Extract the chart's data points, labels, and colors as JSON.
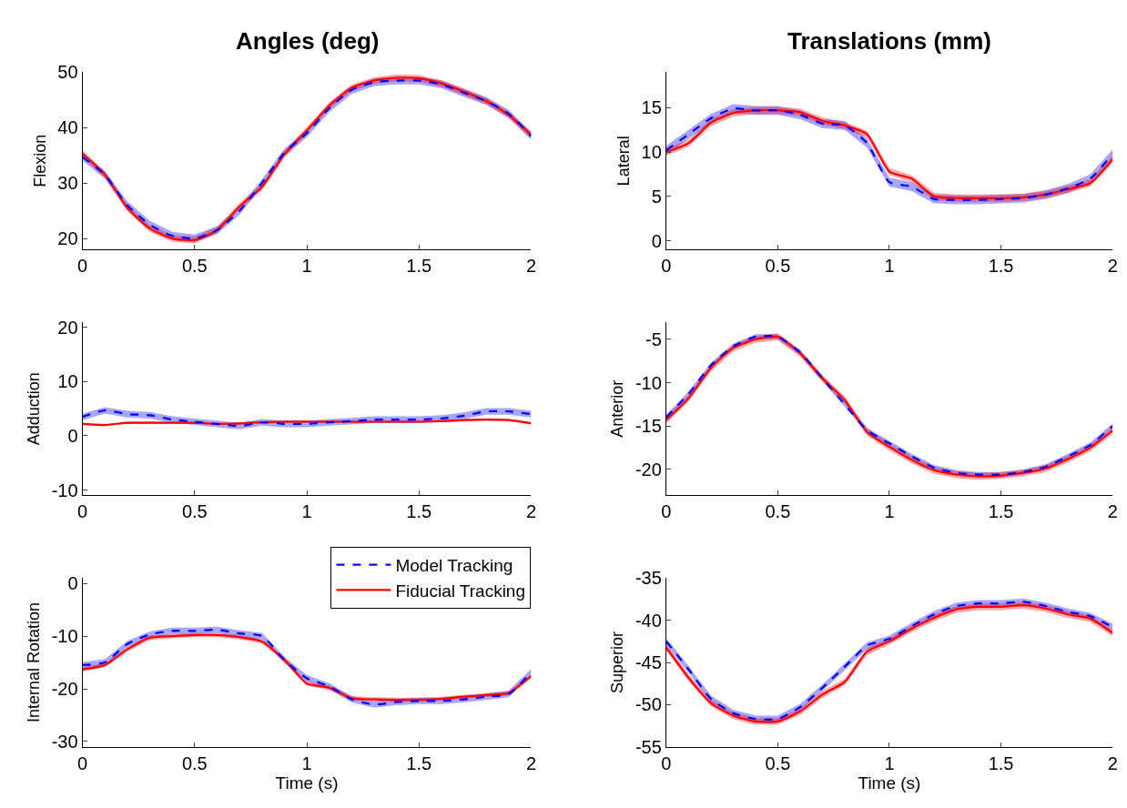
{
  "chart_data": [
    {
      "type": "line",
      "title": "Angles (deg)",
      "ylabel": "Flexion",
      "x": [
        0,
        0.1,
        0.2,
        0.3,
        0.4,
        0.5,
        0.6,
        0.7,
        0.8,
        0.9,
        1.0,
        1.1,
        1.2,
        1.3,
        1.4,
        1.5,
        1.6,
        1.7,
        1.8,
        1.9,
        2.0
      ],
      "xlim": [
        0,
        2
      ],
      "xticks": [
        0,
        0.5,
        1,
        1.5,
        2
      ],
      "ylim": [
        18,
        50
      ],
      "yticks": [
        20,
        30,
        40,
        50
      ],
      "grid": false,
      "legend": false,
      "series": [
        {
          "color": "#0000ff",
          "line_style": "dashed",
          "values": [
            34.7,
            31.5,
            26.0,
            22.5,
            20.5,
            20.0,
            21.5,
            25.0,
            30.0,
            35.5,
            39.0,
            43.5,
            46.8,
            48.2,
            48.5,
            48.5,
            47.8,
            46.3,
            44.8,
            42.5,
            38.5
          ],
          "lower": [
            34.0,
            30.8,
            25.3,
            21.8,
            19.8,
            19.3,
            20.8,
            24.3,
            29.3,
            34.8,
            38.3,
            42.8,
            46.1,
            47.5,
            47.8,
            47.8,
            47.1,
            45.6,
            44.1,
            41.8,
            37.8
          ],
          "upper": [
            35.4,
            32.2,
            26.7,
            23.2,
            21.2,
            20.7,
            22.2,
            25.7,
            30.7,
            36.2,
            39.7,
            44.2,
            47.5,
            48.9,
            49.2,
            49.2,
            48.5,
            47.0,
            45.5,
            43.2,
            39.2
          ]
        },
        {
          "color": "#ff0000",
          "line_style": "solid",
          "values": [
            35.3,
            31.5,
            25.5,
            21.8,
            20.0,
            19.7,
            21.5,
            25.8,
            29.3,
            35.2,
            39.5,
            44.0,
            47.2,
            48.5,
            49.0,
            48.9,
            48.0,
            46.5,
            44.8,
            42.3,
            38.7
          ],
          "lower": [
            34.7,
            30.9,
            24.9,
            21.2,
            19.4,
            19.1,
            20.9,
            25.2,
            28.7,
            34.6,
            38.9,
            43.4,
            46.6,
            47.9,
            48.4,
            48.3,
            47.4,
            45.9,
            44.2,
            41.7,
            38.1
          ],
          "upper": [
            35.9,
            32.1,
            26.1,
            22.4,
            20.6,
            20.3,
            22.1,
            26.4,
            29.9,
            35.8,
            40.1,
            44.6,
            47.8,
            49.1,
            49.6,
            49.5,
            48.6,
            47.1,
            45.4,
            42.9,
            39.3
          ]
        }
      ]
    },
    {
      "type": "line",
      "title": "Translations (mm)",
      "ylabel": "Lateral",
      "x": [
        0,
        0.1,
        0.2,
        0.3,
        0.4,
        0.5,
        0.6,
        0.7,
        0.8,
        0.9,
        1.0,
        1.1,
        1.2,
        1.3,
        1.4,
        1.5,
        1.6,
        1.7,
        1.8,
        1.9,
        2.0
      ],
      "xlim": [
        0,
        2
      ],
      "xticks": [
        0,
        0.5,
        1,
        1.5,
        2
      ],
      "ylim": [
        -1,
        19
      ],
      "yticks": [
        0,
        5,
        10,
        15
      ],
      "grid": false,
      "legend": false,
      "series": [
        {
          "color": "#0000ff",
          "line_style": "dashed",
          "values": [
            10.2,
            12.0,
            13.8,
            14.9,
            14.7,
            14.7,
            14.2,
            13.2,
            13.0,
            11.0,
            6.6,
            6.1,
            4.7,
            4.6,
            4.6,
            4.7,
            4.8,
            5.2,
            5.9,
            7.0,
            9.8
          ],
          "lower": [
            9.7,
            11.5,
            13.3,
            14.4,
            14.2,
            14.2,
            13.7,
            12.7,
            12.5,
            10.5,
            6.1,
            5.6,
            4.2,
            4.1,
            4.1,
            4.2,
            4.3,
            4.7,
            5.4,
            6.5,
            9.3
          ],
          "upper": [
            10.7,
            12.5,
            14.3,
            15.4,
            15.2,
            15.2,
            14.7,
            13.7,
            13.5,
            11.5,
            7.1,
            6.6,
            5.2,
            5.1,
            5.1,
            5.2,
            5.3,
            5.7,
            6.4,
            7.5,
            10.3
          ]
        },
        {
          "color": "#ff0000",
          "line_style": "solid",
          "values": [
            10.0,
            11.0,
            13.3,
            14.4,
            14.7,
            14.7,
            14.5,
            13.5,
            13.0,
            12.0,
            7.8,
            7.0,
            5.0,
            4.8,
            4.8,
            4.8,
            4.9,
            5.2,
            5.8,
            6.5,
            9.2
          ],
          "lower": [
            9.6,
            10.6,
            12.9,
            14.0,
            14.3,
            14.3,
            14.1,
            13.1,
            12.6,
            11.6,
            7.4,
            6.6,
            4.6,
            4.4,
            4.4,
            4.4,
            4.5,
            4.8,
            5.4,
            6.1,
            8.8
          ],
          "upper": [
            10.4,
            11.4,
            13.7,
            14.8,
            15.1,
            15.1,
            14.9,
            13.9,
            13.4,
            12.4,
            8.2,
            7.4,
            5.4,
            5.2,
            5.2,
            5.2,
            5.3,
            5.6,
            6.2,
            6.9,
            9.6
          ]
        }
      ]
    },
    {
      "type": "line",
      "ylabel": "Adduction",
      "x": [
        0,
        0.1,
        0.2,
        0.3,
        0.4,
        0.5,
        0.6,
        0.7,
        0.8,
        0.9,
        1.0,
        1.1,
        1.2,
        1.3,
        1.4,
        1.5,
        1.6,
        1.7,
        1.8,
        1.9,
        2.0
      ],
      "xlim": [
        0,
        2
      ],
      "xticks": [
        0,
        0.5,
        1,
        1.5,
        2
      ],
      "ylim": [
        -11,
        21
      ],
      "yticks": [
        -10,
        0,
        10,
        20
      ],
      "grid": false,
      "legend": false,
      "series": [
        {
          "color": "#0000ff",
          "line_style": "dashed",
          "values": [
            3.5,
            4.7,
            4.0,
            3.8,
            3.0,
            2.6,
            2.2,
            1.8,
            2.5,
            2.2,
            2.2,
            2.5,
            2.7,
            3.0,
            3.0,
            3.0,
            3.2,
            3.7,
            4.5,
            4.5,
            4.0
          ],
          "lower": [
            2.9,
            4.1,
            3.4,
            3.2,
            2.4,
            2.0,
            1.6,
            1.2,
            1.9,
            1.6,
            1.6,
            1.9,
            2.1,
            2.4,
            2.4,
            2.4,
            2.6,
            3.1,
            3.9,
            3.9,
            3.4
          ],
          "upper": [
            4.1,
            5.3,
            4.6,
            4.4,
            3.6,
            3.2,
            2.8,
            2.4,
            3.1,
            2.8,
            2.8,
            3.1,
            3.3,
            3.6,
            3.6,
            3.6,
            3.8,
            4.3,
            5.1,
            5.1,
            4.6
          ]
        },
        {
          "color": "#ff0000",
          "line_style": "solid",
          "values": [
            2.2,
            2.0,
            2.4,
            2.4,
            2.4,
            2.4,
            2.2,
            2.3,
            2.5,
            2.6,
            2.6,
            2.6,
            2.6,
            2.6,
            2.6,
            2.6,
            2.7,
            2.9,
            3.0,
            2.9,
            2.3
          ],
          "lower": [
            2.0,
            1.8,
            2.2,
            2.2,
            2.2,
            2.2,
            2.0,
            2.1,
            2.3,
            2.4,
            2.4,
            2.4,
            2.4,
            2.4,
            2.4,
            2.4,
            2.5,
            2.7,
            2.8,
            2.7,
            2.1
          ],
          "upper": [
            2.4,
            2.2,
            2.6,
            2.6,
            2.6,
            2.6,
            2.4,
            2.5,
            2.7,
            2.8,
            2.8,
            2.8,
            2.8,
            2.8,
            2.8,
            2.8,
            2.9,
            3.1,
            3.2,
            3.1,
            2.5
          ]
        }
      ]
    },
    {
      "type": "line",
      "ylabel": "Anterior",
      "x": [
        0,
        0.1,
        0.2,
        0.3,
        0.4,
        0.5,
        0.6,
        0.7,
        0.8,
        0.9,
        1.0,
        1.1,
        1.2,
        1.3,
        1.4,
        1.5,
        1.6,
        1.7,
        1.8,
        1.9,
        2.0
      ],
      "xlim": [
        0,
        2
      ],
      "xticks": [
        0,
        0.5,
        1,
        1.5,
        2
      ],
      "ylim": [
        -23,
        -3
      ],
      "yticks": [
        -20,
        -15,
        -10,
        -5
      ],
      "grid": false,
      "legend": false,
      "series": [
        {
          "color": "#0000ff",
          "line_style": "dashed",
          "values": [
            -14.0,
            -11.3,
            -8.0,
            -5.8,
            -4.7,
            -4.7,
            -6.5,
            -9.5,
            -12.5,
            -15.5,
            -17.0,
            -18.5,
            -19.8,
            -20.4,
            -20.6,
            -20.6,
            -20.3,
            -19.7,
            -18.5,
            -17.2,
            -15.0
          ],
          "lower": [
            -14.3,
            -11.6,
            -8.3,
            -6.1,
            -5.0,
            -5.0,
            -6.8,
            -9.8,
            -12.8,
            -15.8,
            -17.3,
            -18.8,
            -20.1,
            -20.7,
            -20.9,
            -20.9,
            -20.6,
            -20.0,
            -18.8,
            -17.5,
            -15.3
          ],
          "upper": [
            -13.7,
            -11.0,
            -7.7,
            -5.5,
            -4.4,
            -4.4,
            -6.2,
            -9.2,
            -12.2,
            -15.2,
            -16.7,
            -18.2,
            -19.5,
            -20.1,
            -20.3,
            -20.3,
            -20.0,
            -19.4,
            -18.2,
            -16.9,
            -14.7
          ]
        },
        {
          "color": "#ff0000",
          "line_style": "solid",
          "values": [
            -14.3,
            -11.8,
            -8.3,
            -6.0,
            -5.0,
            -4.7,
            -6.6,
            -9.5,
            -12.0,
            -15.7,
            -17.4,
            -18.9,
            -20.1,
            -20.6,
            -20.8,
            -20.7,
            -20.4,
            -19.9,
            -18.8,
            -17.5,
            -15.5
          ],
          "lower": [
            -14.7,
            -12.2,
            -8.7,
            -6.4,
            -5.4,
            -5.1,
            -7.0,
            -9.9,
            -12.4,
            -16.1,
            -17.8,
            -19.3,
            -20.5,
            -21.0,
            -21.2,
            -21.1,
            -20.8,
            -20.3,
            -19.2,
            -17.9,
            -15.9
          ],
          "upper": [
            -13.9,
            -11.4,
            -7.9,
            -5.6,
            -4.6,
            -4.3,
            -6.2,
            -9.1,
            -11.6,
            -15.3,
            -17.0,
            -18.5,
            -19.7,
            -20.2,
            -20.4,
            -20.3,
            -20.0,
            -19.5,
            -18.4,
            -17.1,
            -15.1
          ]
        }
      ]
    },
    {
      "type": "line",
      "ylabel": "Internal Rotation",
      "xlabel": "Time (s)",
      "x": [
        0,
        0.1,
        0.2,
        0.3,
        0.4,
        0.5,
        0.6,
        0.7,
        0.8,
        0.9,
        1.0,
        1.1,
        1.2,
        1.3,
        1.4,
        1.5,
        1.6,
        1.7,
        1.8,
        1.9,
        2.0
      ],
      "xlim": [
        0,
        2
      ],
      "xticks": [
        0,
        0.5,
        1,
        1.5,
        2
      ],
      "ylim": [
        -31,
        1
      ],
      "yticks": [
        -30,
        -20,
        -10,
        0
      ],
      "grid": false,
      "legend": "top right",
      "series": [
        {
          "name": "Model Tracking",
          "color": "#0000ff",
          "line_style": "dashed",
          "values": [
            -15.5,
            -15.0,
            -11.5,
            -9.7,
            -9.0,
            -9.0,
            -8.8,
            -9.5,
            -10.0,
            -14.5,
            -18.0,
            -19.5,
            -22.0,
            -23.0,
            -22.5,
            -22.3,
            -22.3,
            -22.0,
            -21.5,
            -21.0,
            -16.8
          ],
          "lower": [
            -16.1,
            -15.6,
            -12.1,
            -10.3,
            -9.6,
            -9.6,
            -9.4,
            -10.1,
            -10.6,
            -15.1,
            -18.6,
            -20.1,
            -22.6,
            -23.6,
            -23.1,
            -22.9,
            -22.9,
            -22.6,
            -22.1,
            -21.6,
            -17.4
          ],
          "upper": [
            -14.9,
            -14.4,
            -10.9,
            -9.1,
            -8.4,
            -8.4,
            -8.2,
            -8.9,
            -9.4,
            -13.9,
            -17.4,
            -18.9,
            -21.4,
            -22.4,
            -21.9,
            -21.7,
            -21.7,
            -21.4,
            -20.9,
            -20.4,
            -16.2
          ]
        },
        {
          "name": "Fiducial Tracking",
          "color": "#ff0000",
          "line_style": "solid",
          "values": [
            -16.3,
            -15.5,
            -12.5,
            -10.3,
            -10.0,
            -9.8,
            -9.8,
            -10.2,
            -11.0,
            -14.5,
            -19.0,
            -19.8,
            -21.8,
            -22.0,
            -22.1,
            -22.1,
            -21.9,
            -21.5,
            -21.2,
            -20.8,
            -17.6
          ],
          "lower": [
            -16.7,
            -15.9,
            -12.9,
            -10.7,
            -10.4,
            -10.2,
            -10.2,
            -10.6,
            -11.4,
            -14.9,
            -19.4,
            -20.2,
            -22.2,
            -22.4,
            -22.5,
            -22.5,
            -22.3,
            -21.9,
            -21.6,
            -21.2,
            -18.0
          ],
          "upper": [
            -15.9,
            -15.1,
            -12.1,
            -9.9,
            -9.6,
            -9.4,
            -9.4,
            -9.8,
            -10.6,
            -14.1,
            -18.6,
            -19.4,
            -21.4,
            -21.6,
            -21.7,
            -21.7,
            -21.5,
            -21.1,
            -20.8,
            -20.4,
            -17.2
          ]
        }
      ]
    },
    {
      "type": "line",
      "ylabel": "Superior",
      "xlabel": "Time (s)",
      "x": [
        0,
        0.1,
        0.2,
        0.3,
        0.4,
        0.5,
        0.6,
        0.7,
        0.8,
        0.9,
        1.0,
        1.1,
        1.2,
        1.3,
        1.4,
        1.5,
        1.6,
        1.7,
        1.8,
        1.9,
        2.0
      ],
      "xlim": [
        0,
        2
      ],
      "xticks": [
        0,
        0.5,
        1,
        1.5,
        2
      ],
      "ylim": [
        -55,
        -35
      ],
      "yticks": [
        -55,
        -50,
        -45,
        -40,
        -35
      ],
      "grid": false,
      "legend": false,
      "series": [
        {
          "color": "#0000ff",
          "line_style": "dashed",
          "values": [
            -42.5,
            -45.8,
            -49.3,
            -51.0,
            -51.7,
            -51.7,
            -50.3,
            -48.0,
            -45.5,
            -43.0,
            -42.2,
            -40.7,
            -39.3,
            -38.3,
            -38.0,
            -38.0,
            -37.8,
            -38.3,
            -39.0,
            -39.5,
            -40.8
          ],
          "lower": [
            -42.9,
            -46.2,
            -49.7,
            -51.4,
            -52.1,
            -52.1,
            -50.7,
            -48.4,
            -45.9,
            -43.4,
            -42.6,
            -41.1,
            -39.7,
            -38.7,
            -38.4,
            -38.4,
            -38.2,
            -38.7,
            -39.4,
            -39.9,
            -41.2
          ],
          "upper": [
            -42.1,
            -45.4,
            -48.9,
            -50.6,
            -51.3,
            -51.3,
            -49.9,
            -47.6,
            -45.1,
            -42.6,
            -41.8,
            -40.3,
            -38.9,
            -37.9,
            -37.6,
            -37.6,
            -37.4,
            -37.9,
            -38.6,
            -39.1,
            -40.4
          ]
        },
        {
          "color": "#ff0000",
          "line_style": "solid",
          "values": [
            -43.2,
            -46.8,
            -49.8,
            -51.3,
            -52.0,
            -52.0,
            -50.8,
            -48.8,
            -47.3,
            -43.7,
            -42.5,
            -41.0,
            -39.7,
            -38.7,
            -38.4,
            -38.4,
            -38.2,
            -38.6,
            -39.3,
            -39.8,
            -41.5
          ],
          "lower": [
            -43.6,
            -47.2,
            -50.2,
            -51.7,
            -52.4,
            -52.4,
            -51.2,
            -49.2,
            -47.7,
            -44.1,
            -42.9,
            -41.4,
            -40.1,
            -39.1,
            -38.8,
            -38.8,
            -38.6,
            -39.0,
            -39.7,
            -40.2,
            -41.9
          ],
          "upper": [
            -42.8,
            -46.4,
            -49.4,
            -50.9,
            -51.6,
            -51.6,
            -50.4,
            -48.4,
            -46.9,
            -43.3,
            -42.1,
            -40.6,
            -39.3,
            -38.3,
            -38.0,
            -38.0,
            -37.8,
            -38.2,
            -38.9,
            -39.4,
            -41.1
          ]
        }
      ]
    }
  ]
}
